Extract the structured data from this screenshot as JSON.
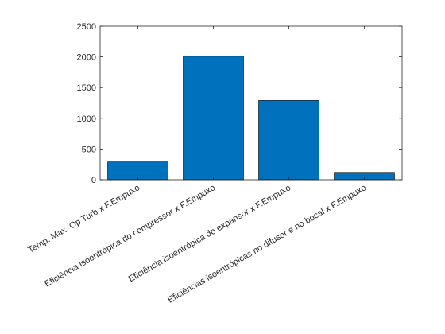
{
  "chart_data": {
    "type": "bar",
    "title": "",
    "xlabel": "",
    "ylabel": "",
    "categories": [
      "Temp. Max. Op Turb x F.Empuxo",
      "Eficiência isoentrópica do compressor x F.Empuxo",
      "Eficiência isoentrópica do expansor x F.Empuxo",
      "Eficiências isoentrópicas no difusor e no bocal x F.Empuxo"
    ],
    "values": [
      290,
      2010,
      1290,
      120
    ],
    "ylim": [
      0,
      2500
    ],
    "yticks": [
      0,
      500,
      1000,
      1500,
      2000,
      2500
    ],
    "grid": false,
    "legend": "none",
    "colors": {
      "bar": "#0072BD",
      "bar_edge": "#000000",
      "axis": "#262626",
      "background": "#ffffff"
    }
  }
}
